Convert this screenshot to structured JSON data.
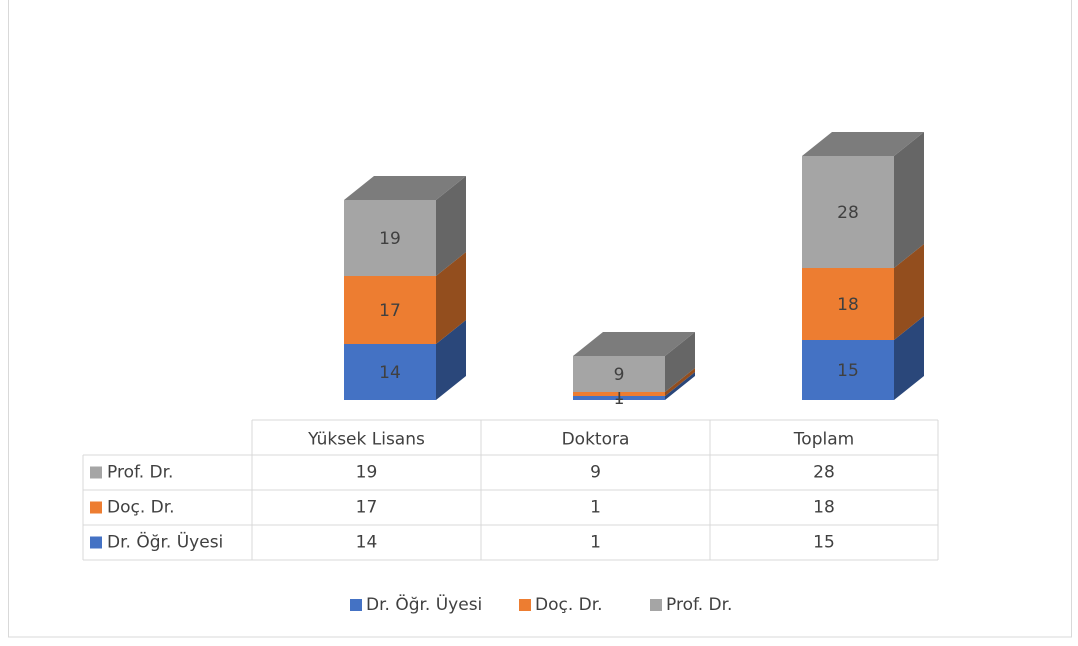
{
  "chart_data": {
    "type": "bar3d_stacked",
    "categories": [
      "Yüksek Lisans",
      "Doktora",
      "Toplam"
    ],
    "series": [
      {
        "name": "Dr. Öğr. Üyesi",
        "color": "#4472c4",
        "values": [
          14,
          1,
          15
        ]
      },
      {
        "name": "Doç. Dr.",
        "color": "#ed7d31",
        "values": [
          17,
          1,
          18
        ]
      },
      {
        "name": "Prof. Dr.",
        "color": "#a5a5a5",
        "values": [
          19,
          9,
          28
        ]
      }
    ],
    "data_table": true,
    "legend": "bottom"
  }
}
